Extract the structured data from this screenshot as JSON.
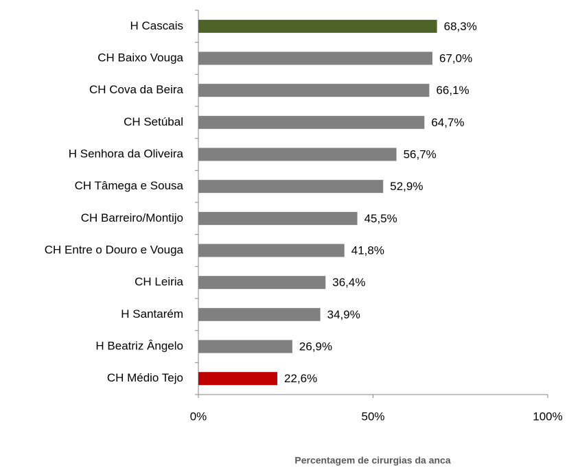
{
  "chart_data": {
    "type": "bar",
    "orientation": "horizontal",
    "x_label": "Percentagem de cirurgias da anca",
    "categories": [
      "H Cascais",
      "CH Baixo Vouga",
      "CH Cova da Beira",
      "CH Setúbal",
      "H Senhora da Oliveira",
      "CH Tâmega e Sousa",
      "CH Barreiro/Montijo",
      "CH Entre o Douro e Vouga",
      "CH Leiria",
      "H Santarém",
      "H Beatriz Ângelo",
      "CH Médio Tejo"
    ],
    "values": [
      68.3,
      67.0,
      66.1,
      64.7,
      56.7,
      52.9,
      45.5,
      41.8,
      36.4,
      34.9,
      26.9,
      22.6
    ],
    "value_labels": [
      "68,3%",
      "67,0%",
      "66,1%",
      "64,7%",
      "56,7%",
      "52,9%",
      "45,5%",
      "41,8%",
      "36,4%",
      "34,9%",
      "26,9%",
      "22,6%"
    ],
    "colors": [
      "#4f6228",
      "#808080",
      "#808080",
      "#808080",
      "#808080",
      "#808080",
      "#808080",
      "#808080",
      "#808080",
      "#808080",
      "#808080",
      "#c00000"
    ],
    "xlim": [
      0,
      100
    ],
    "xticks": [
      {
        "value": 0,
        "label": "0%"
      },
      {
        "value": 50,
        "label": "50%"
      },
      {
        "value": 100,
        "label": "100%"
      }
    ],
    "grid": false
  }
}
